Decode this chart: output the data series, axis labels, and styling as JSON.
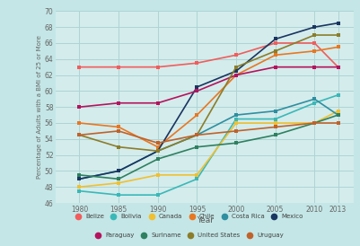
{
  "years": [
    1980,
    1985,
    1990,
    1995,
    2000,
    2005,
    2010,
    2013
  ],
  "series": {
    "Belize": [
      63.0,
      63.0,
      63.0,
      63.5,
      64.5,
      66.0,
      66.0,
      63.0
    ],
    "Bolivia": [
      47.5,
      47.0,
      47.0,
      49.0,
      56.5,
      56.5,
      58.5,
      59.5
    ],
    "Canada": [
      48.0,
      48.5,
      49.5,
      49.5,
      56.0,
      56.0,
      56.0,
      57.5
    ],
    "Chile": [
      56.0,
      55.5,
      53.0,
      57.0,
      62.0,
      64.5,
      65.0,
      65.5
    ],
    "Costa Rica": [
      49.0,
      50.0,
      52.5,
      54.5,
      57.0,
      57.5,
      59.0,
      57.0
    ],
    "Mexico": [
      49.0,
      50.0,
      52.5,
      60.5,
      62.5,
      66.5,
      68.0,
      68.5
    ],
    "Paraguay": [
      58.0,
      58.5,
      58.5,
      60.0,
      62.0,
      63.0,
      63.0,
      63.0
    ],
    "Suriname": [
      49.5,
      49.0,
      51.5,
      53.0,
      53.5,
      54.5,
      56.0,
      57.0
    ],
    "United States": [
      54.5,
      53.0,
      52.5,
      54.5,
      63.0,
      65.0,
      67.0,
      67.0
    ],
    "Uruguay": [
      54.5,
      55.0,
      53.5,
      54.5,
      55.0,
      55.5,
      56.0,
      56.0
    ]
  },
  "colors": {
    "Belize": "#f25c5c",
    "Bolivia": "#3ab8b8",
    "Canada": "#f0c030",
    "Chile": "#e87722",
    "Costa Rica": "#2e8fa0",
    "Mexico": "#1a3560",
    "Paraguay": "#b5135e",
    "Suriname": "#2e8060",
    "United States": "#8b7d2a",
    "Uruguay": "#c0622a"
  },
  "background_color": "#c4e6e6",
  "plot_bg_color": "#d4ecec",
  "grid_color": "#aed4d4",
  "ylabel": "Percentage of Adults with a BMI of 25 or More",
  "xlabel": "Year",
  "ylim": [
    46,
    70
  ],
  "yticks": [
    46,
    48,
    50,
    52,
    54,
    56,
    58,
    60,
    62,
    64,
    66,
    68,
    70
  ],
  "marker": "s",
  "marker_size": 3.5,
  "linewidth": 1.2,
  "legend_row1": [
    "Belize",
    "Bolivia",
    "Canada",
    "Chile",
    "Costa Rica",
    "Mexico"
  ],
  "legend_row2": [
    "Paraguay",
    "Suriname",
    "United States",
    "Uruguay"
  ]
}
